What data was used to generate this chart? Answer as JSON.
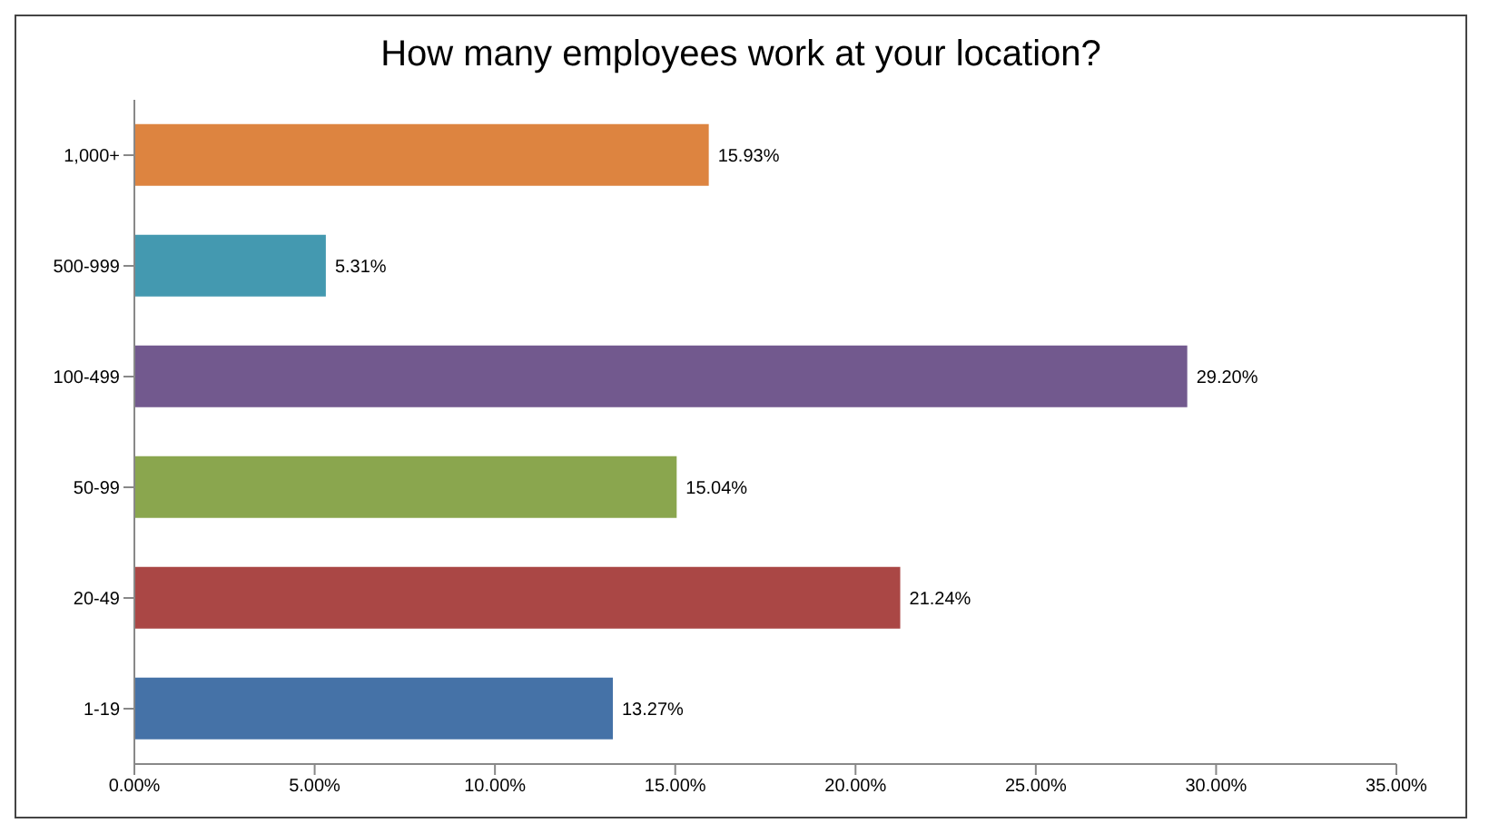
{
  "chart_data": {
    "type": "bar",
    "orientation": "horizontal",
    "title": "How many employees work at your location?",
    "categories": [
      "1,000+",
      "500-999",
      "100-499",
      "50-99",
      "20-49",
      "1-19"
    ],
    "values": [
      15.93,
      5.31,
      29.2,
      15.04,
      21.24,
      13.27
    ],
    "colors": [
      "#dd8440",
      "#4499b0",
      "#72598e",
      "#8aa64e",
      "#aa4745",
      "#4572a7"
    ],
    "value_labels": [
      "15.93%",
      "5.31%",
      "29.20%",
      "15.04%",
      "21.24%",
      "13.27%"
    ],
    "xlim": [
      0,
      35
    ],
    "xticks": [
      {
        "value": 0,
        "label": "0.00%"
      },
      {
        "value": 5,
        "label": "5.00%"
      },
      {
        "value": 10,
        "label": "10.00%"
      },
      {
        "value": 15,
        "label": "15.00%"
      },
      {
        "value": 20,
        "label": "20.00%"
      },
      {
        "value": 25,
        "label": "25.00%"
      },
      {
        "value": 30,
        "label": "30.00%"
      },
      {
        "value": 35,
        "label": "35.00%"
      }
    ],
    "grid": false
  }
}
